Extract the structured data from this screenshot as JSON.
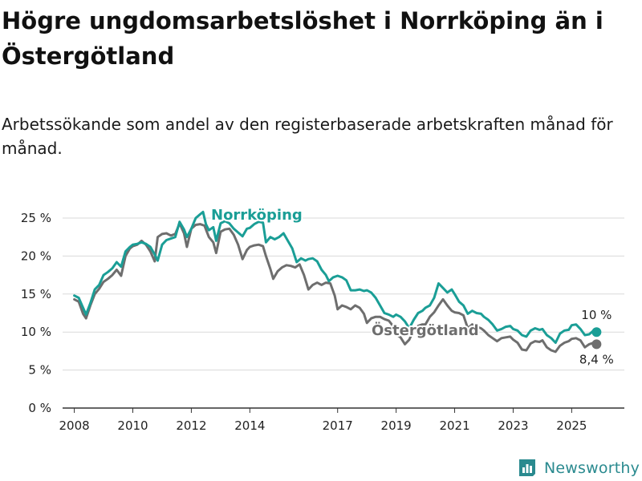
{
  "title": "Högre ungdomsarbetslöshet i Norrköping än i Östergötland",
  "subtitle": "Arbetssökande som andel av den registerbaserade arbetskraften månad för månad.",
  "brand": {
    "name": "Newsworthy",
    "icon": "bar-chart-logo-icon"
  },
  "colors": {
    "norrkoping": "#1a9e96",
    "ostergotland": "#6e6e6e",
    "grid": "#d9d9d9",
    "axis": "#333333"
  },
  "chart_data": {
    "type": "line",
    "title": "Högre ungdomsarbetslöshet i Norrköping än i Östergötland",
    "xlabel": "",
    "ylabel": "",
    "ylim": [
      0,
      25
    ],
    "y_ticks": [
      0,
      5,
      10,
      15,
      20,
      25
    ],
    "y_tick_labels": [
      "0 %",
      "5 %",
      "10 %",
      "15 %",
      "20 %",
      "25 %"
    ],
    "x_ticks": [
      2008,
      2010,
      2012,
      2014,
      2017,
      2019,
      2021,
      2023,
      2025
    ],
    "x_tick_labels": [
      "2008",
      "2010",
      "2012",
      "2014",
      "2017",
      "2019",
      "2021",
      "2023",
      "2025"
    ],
    "xlim": [
      2007.6,
      2026.8
    ],
    "end_labels": {
      "norrkoping": "10 %",
      "ostergotland": "8,4 %"
    },
    "series": [
      {
        "name": "Norrköping",
        "color": "#1a9e96",
        "points": [
          [
            2008.0,
            14.8
          ],
          [
            2008.15,
            14.5
          ],
          [
            2008.3,
            13.2
          ],
          [
            2008.4,
            12.3
          ],
          [
            2008.55,
            13.8
          ],
          [
            2008.7,
            15.6
          ],
          [
            2008.85,
            16.2
          ],
          [
            2009.0,
            17.5
          ],
          [
            2009.15,
            17.9
          ],
          [
            2009.3,
            18.4
          ],
          [
            2009.45,
            19.2
          ],
          [
            2009.6,
            18.6
          ],
          [
            2009.75,
            20.6
          ],
          [
            2009.9,
            21.2
          ],
          [
            2010.0,
            21.5
          ],
          [
            2010.15,
            21.6
          ],
          [
            2010.3,
            21.8
          ],
          [
            2010.45,
            21.6
          ],
          [
            2010.6,
            21.2
          ],
          [
            2010.75,
            20.2
          ],
          [
            2010.85,
            19.4
          ],
          [
            2011.0,
            21.5
          ],
          [
            2011.15,
            22.1
          ],
          [
            2011.3,
            22.3
          ],
          [
            2011.45,
            22.5
          ],
          [
            2011.6,
            24.5
          ],
          [
            2011.75,
            23.5
          ],
          [
            2011.85,
            22.5
          ],
          [
            2012.0,
            23.6
          ],
          [
            2012.15,
            25.0
          ],
          [
            2012.3,
            25.5
          ],
          [
            2012.4,
            25.8
          ],
          [
            2012.5,
            24.2
          ],
          [
            2012.6,
            23.4
          ],
          [
            2012.75,
            23.8
          ],
          [
            2012.85,
            22.0
          ],
          [
            2013.0,
            24.3
          ],
          [
            2013.15,
            24.6
          ],
          [
            2013.3,
            24.3
          ],
          [
            2013.45,
            23.6
          ],
          [
            2013.6,
            23.1
          ],
          [
            2013.75,
            22.6
          ],
          [
            2013.9,
            23.6
          ],
          [
            2014.0,
            23.7
          ],
          [
            2014.15,
            24.2
          ],
          [
            2014.3,
            24.5
          ],
          [
            2014.45,
            24.4
          ],
          [
            2014.55,
            21.8
          ],
          [
            2014.7,
            22.5
          ],
          [
            2014.85,
            22.2
          ],
          [
            2015.0,
            22.5
          ],
          [
            2015.15,
            23.0
          ],
          [
            2015.3,
            22.0
          ],
          [
            2015.45,
            21.0
          ],
          [
            2015.6,
            19.2
          ],
          [
            2015.75,
            19.7
          ],
          [
            2015.9,
            19.4
          ],
          [
            2016.0,
            19.6
          ],
          [
            2016.15,
            19.7
          ],
          [
            2016.3,
            19.3
          ],
          [
            2016.45,
            18.2
          ],
          [
            2016.6,
            17.5
          ],
          [
            2016.7,
            16.7
          ],
          [
            2016.85,
            17.2
          ],
          [
            2017.0,
            17.4
          ],
          [
            2017.15,
            17.2
          ],
          [
            2017.3,
            16.8
          ],
          [
            2017.45,
            15.5
          ],
          [
            2017.6,
            15.5
          ],
          [
            2017.75,
            15.6
          ],
          [
            2017.9,
            15.4
          ],
          [
            2018.0,
            15.5
          ],
          [
            2018.15,
            15.2
          ],
          [
            2018.3,
            14.5
          ],
          [
            2018.45,
            13.5
          ],
          [
            2018.6,
            12.5
          ],
          [
            2018.75,
            12.3
          ],
          [
            2018.9,
            12.0
          ],
          [
            2019.0,
            12.3
          ],
          [
            2019.15,
            12.0
          ],
          [
            2019.3,
            11.4
          ],
          [
            2019.45,
            10.5
          ],
          [
            2019.6,
            11.6
          ],
          [
            2019.75,
            12.5
          ],
          [
            2019.9,
            12.8
          ],
          [
            2020.0,
            13.2
          ],
          [
            2020.15,
            13.5
          ],
          [
            2020.3,
            14.5
          ],
          [
            2020.45,
            16.4
          ],
          [
            2020.6,
            15.8
          ],
          [
            2020.75,
            15.2
          ],
          [
            2020.9,
            15.6
          ],
          [
            2021.0,
            15.0
          ],
          [
            2021.15,
            14.0
          ],
          [
            2021.3,
            13.5
          ],
          [
            2021.45,
            12.4
          ],
          [
            2021.6,
            12.8
          ],
          [
            2021.75,
            12.5
          ],
          [
            2021.9,
            12.4
          ],
          [
            2022.0,
            12.0
          ],
          [
            2022.15,
            11.6
          ],
          [
            2022.3,
            11.0
          ],
          [
            2022.45,
            10.2
          ],
          [
            2022.6,
            10.4
          ],
          [
            2022.75,
            10.7
          ],
          [
            2022.9,
            10.8
          ],
          [
            2023.0,
            10.4
          ],
          [
            2023.15,
            10.2
          ],
          [
            2023.3,
            9.6
          ],
          [
            2023.45,
            9.4
          ],
          [
            2023.6,
            10.2
          ],
          [
            2023.75,
            10.5
          ],
          [
            2023.9,
            10.3
          ],
          [
            2024.0,
            10.4
          ],
          [
            2024.15,
            9.6
          ],
          [
            2024.3,
            9.2
          ],
          [
            2024.45,
            8.6
          ],
          [
            2024.6,
            9.8
          ],
          [
            2024.75,
            10.2
          ],
          [
            2024.9,
            10.3
          ],
          [
            2025.0,
            10.9
          ],
          [
            2025.15,
            11.0
          ],
          [
            2025.3,
            10.4
          ],
          [
            2025.45,
            9.6
          ],
          [
            2025.6,
            9.7
          ],
          [
            2025.75,
            10.2
          ],
          [
            2025.85,
            10.0
          ]
        ]
      },
      {
        "name": "Östergötland",
        "color": "#6e6e6e",
        "points": [
          [
            2008.0,
            14.3
          ],
          [
            2008.15,
            14.0
          ],
          [
            2008.3,
            12.4
          ],
          [
            2008.4,
            11.8
          ],
          [
            2008.55,
            13.5
          ],
          [
            2008.7,
            15.0
          ],
          [
            2008.85,
            15.7
          ],
          [
            2009.0,
            16.6
          ],
          [
            2009.15,
            17.0
          ],
          [
            2009.3,
            17.5
          ],
          [
            2009.45,
            18.2
          ],
          [
            2009.6,
            17.4
          ],
          [
            2009.75,
            20.0
          ],
          [
            2009.9,
            21.0
          ],
          [
            2010.0,
            21.3
          ],
          [
            2010.15,
            21.5
          ],
          [
            2010.3,
            22.0
          ],
          [
            2010.45,
            21.5
          ],
          [
            2010.6,
            20.6
          ],
          [
            2010.75,
            19.3
          ],
          [
            2010.85,
            22.5
          ],
          [
            2011.0,
            22.9
          ],
          [
            2011.15,
            23.0
          ],
          [
            2011.3,
            22.7
          ],
          [
            2011.45,
            22.9
          ],
          [
            2011.6,
            24.3
          ],
          [
            2011.75,
            23.0
          ],
          [
            2011.85,
            21.2
          ],
          [
            2012.0,
            23.6
          ],
          [
            2012.15,
            24.1
          ],
          [
            2012.3,
            24.2
          ],
          [
            2012.45,
            24.0
          ],
          [
            2012.6,
            22.5
          ],
          [
            2012.75,
            21.8
          ],
          [
            2012.85,
            20.4
          ],
          [
            2013.0,
            23.2
          ],
          [
            2013.15,
            23.5
          ],
          [
            2013.3,
            23.6
          ],
          [
            2013.45,
            22.8
          ],
          [
            2013.6,
            21.5
          ],
          [
            2013.75,
            19.6
          ],
          [
            2013.9,
            20.8
          ],
          [
            2014.0,
            21.2
          ],
          [
            2014.15,
            21.4
          ],
          [
            2014.3,
            21.5
          ],
          [
            2014.45,
            21.3
          ],
          [
            2014.55,
            20.0
          ],
          [
            2014.7,
            18.3
          ],
          [
            2014.8,
            17.0
          ],
          [
            2014.95,
            18.0
          ],
          [
            2015.1,
            18.5
          ],
          [
            2015.25,
            18.8
          ],
          [
            2015.4,
            18.7
          ],
          [
            2015.55,
            18.5
          ],
          [
            2015.7,
            18.9
          ],
          [
            2015.85,
            17.5
          ],
          [
            2016.0,
            15.6
          ],
          [
            2016.15,
            16.2
          ],
          [
            2016.3,
            16.5
          ],
          [
            2016.45,
            16.2
          ],
          [
            2016.6,
            16.5
          ],
          [
            2016.75,
            16.4
          ],
          [
            2016.9,
            14.8
          ],
          [
            2017.0,
            13.0
          ],
          [
            2017.15,
            13.5
          ],
          [
            2017.3,
            13.3
          ],
          [
            2017.45,
            13.0
          ],
          [
            2017.6,
            13.5
          ],
          [
            2017.75,
            13.2
          ],
          [
            2017.9,
            12.4
          ],
          [
            2018.0,
            11.2
          ],
          [
            2018.15,
            11.8
          ],
          [
            2018.3,
            12.0
          ],
          [
            2018.45,
            12.0
          ],
          [
            2018.6,
            11.7
          ],
          [
            2018.75,
            11.5
          ],
          [
            2018.85,
            11.0
          ],
          [
            2019.0,
            9.7
          ],
          [
            2019.15,
            9.3
          ],
          [
            2019.3,
            8.4
          ],
          [
            2019.45,
            9.0
          ],
          [
            2019.6,
            10.3
          ],
          [
            2019.75,
            10.8
          ],
          [
            2019.9,
            11.0
          ],
          [
            2020.0,
            11.0
          ],
          [
            2020.15,
            12.0
          ],
          [
            2020.3,
            12.6
          ],
          [
            2020.45,
            13.5
          ],
          [
            2020.6,
            14.3
          ],
          [
            2020.75,
            13.5
          ],
          [
            2020.9,
            12.8
          ],
          [
            2021.0,
            12.6
          ],
          [
            2021.15,
            12.5
          ],
          [
            2021.3,
            12.2
          ],
          [
            2021.45,
            10.5
          ],
          [
            2021.6,
            11.0
          ],
          [
            2021.75,
            10.7
          ],
          [
            2021.9,
            10.5
          ],
          [
            2022.0,
            10.2
          ],
          [
            2022.15,
            9.6
          ],
          [
            2022.3,
            9.2
          ],
          [
            2022.45,
            8.8
          ],
          [
            2022.6,
            9.2
          ],
          [
            2022.75,
            9.3
          ],
          [
            2022.9,
            9.4
          ],
          [
            2023.0,
            9.0
          ],
          [
            2023.15,
            8.6
          ],
          [
            2023.3,
            7.7
          ],
          [
            2023.45,
            7.6
          ],
          [
            2023.6,
            8.5
          ],
          [
            2023.75,
            8.8
          ],
          [
            2023.9,
            8.7
          ],
          [
            2024.0,
            8.9
          ],
          [
            2024.15,
            8.0
          ],
          [
            2024.3,
            7.6
          ],
          [
            2024.45,
            7.4
          ],
          [
            2024.6,
            8.2
          ],
          [
            2024.75,
            8.6
          ],
          [
            2024.9,
            8.8
          ],
          [
            2025.0,
            9.1
          ],
          [
            2025.15,
            9.2
          ],
          [
            2025.3,
            8.9
          ],
          [
            2025.45,
            8.0
          ],
          [
            2025.6,
            8.4
          ],
          [
            2025.75,
            8.6
          ],
          [
            2025.85,
            8.4
          ]
        ]
      }
    ]
  }
}
